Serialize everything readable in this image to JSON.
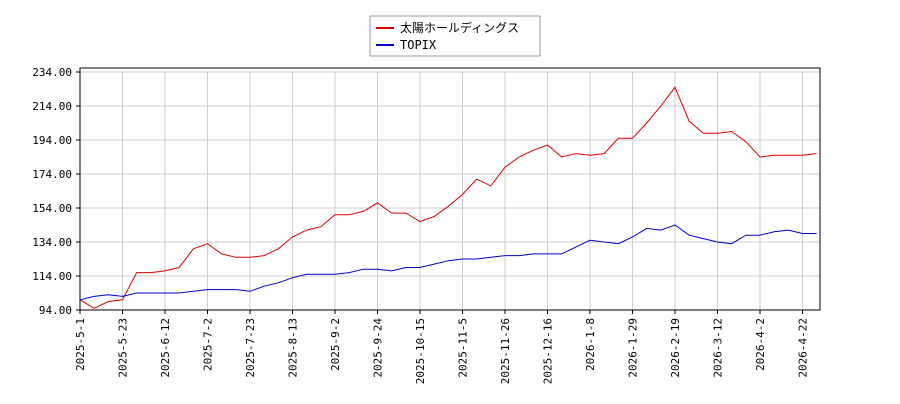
{
  "chart_data": {
    "type": "line",
    "categories": [
      "2025-5-1",
      null,
      null,
      "2025-5-23",
      null,
      null,
      "2025-6-12",
      null,
      null,
      "2025-7-2",
      null,
      null,
      "2025-7-23",
      null,
      null,
      "2025-8-13",
      null,
      null,
      "2025-9-2",
      null,
      null,
      "2025-9-24",
      null,
      null,
      "2025-10-15",
      null,
      null,
      "2025-11-5",
      null,
      null,
      "2025-11-26",
      null,
      null,
      "2025-12-16",
      null,
      null,
      "2026-1-8",
      null,
      null,
      "2026-1-29",
      null,
      null,
      "2026-2-19",
      null,
      null,
      "2026-3-12",
      null,
      null,
      "2026-4-2",
      null,
      null,
      "2026-4-22",
      null
    ],
    "series": [
      {
        "name": "太陽ホールディングス",
        "color": "#dd0000",
        "values": [
          100,
          95,
          99,
          100,
          116,
          116,
          117,
          119,
          130,
          133,
          127,
          125,
          125,
          126,
          130,
          137,
          141,
          143,
          150,
          150,
          152,
          157,
          151,
          151,
          146,
          149,
          155,
          162,
          171,
          167,
          178,
          184,
          188,
          191,
          184,
          186,
          185,
          186,
          195,
          195,
          204,
          214,
          225,
          205,
          198,
          198,
          199,
          193,
          184,
          185,
          185,
          185,
          186
        ]
      },
      {
        "name": "TOPIX",
        "color": "#0000cc",
        "values": [
          100,
          102,
          103,
          102,
          104,
          104,
          104,
          104,
          105,
          106,
          106,
          106,
          105,
          108,
          110,
          113,
          115,
          115,
          115,
          116,
          118,
          118,
          117,
          119,
          119,
          121,
          123,
          124,
          124,
          125,
          126,
          126,
          127,
          127,
          127,
          131,
          135,
          134,
          133,
          137,
          142,
          141,
          144,
          138,
          136,
          134,
          133,
          138,
          138,
          140,
          141,
          139,
          139
        ]
      }
    ],
    "ylim": [
      94,
      234
    ],
    "yticks": [
      {
        "value": 94,
        "label": "94.00"
      },
      {
        "value": 114,
        "label": "114.00"
      },
      {
        "value": 134,
        "label": "134.00"
      },
      {
        "value": 154,
        "label": "154.00"
      },
      {
        "value": 174,
        "label": "174.00"
      },
      {
        "value": 194,
        "label": "194.00"
      },
      {
        "value": 214,
        "label": "214.00"
      },
      {
        "value": 234,
        "label": "234.00"
      }
    ],
    "grid": true,
    "legend": "top"
  }
}
